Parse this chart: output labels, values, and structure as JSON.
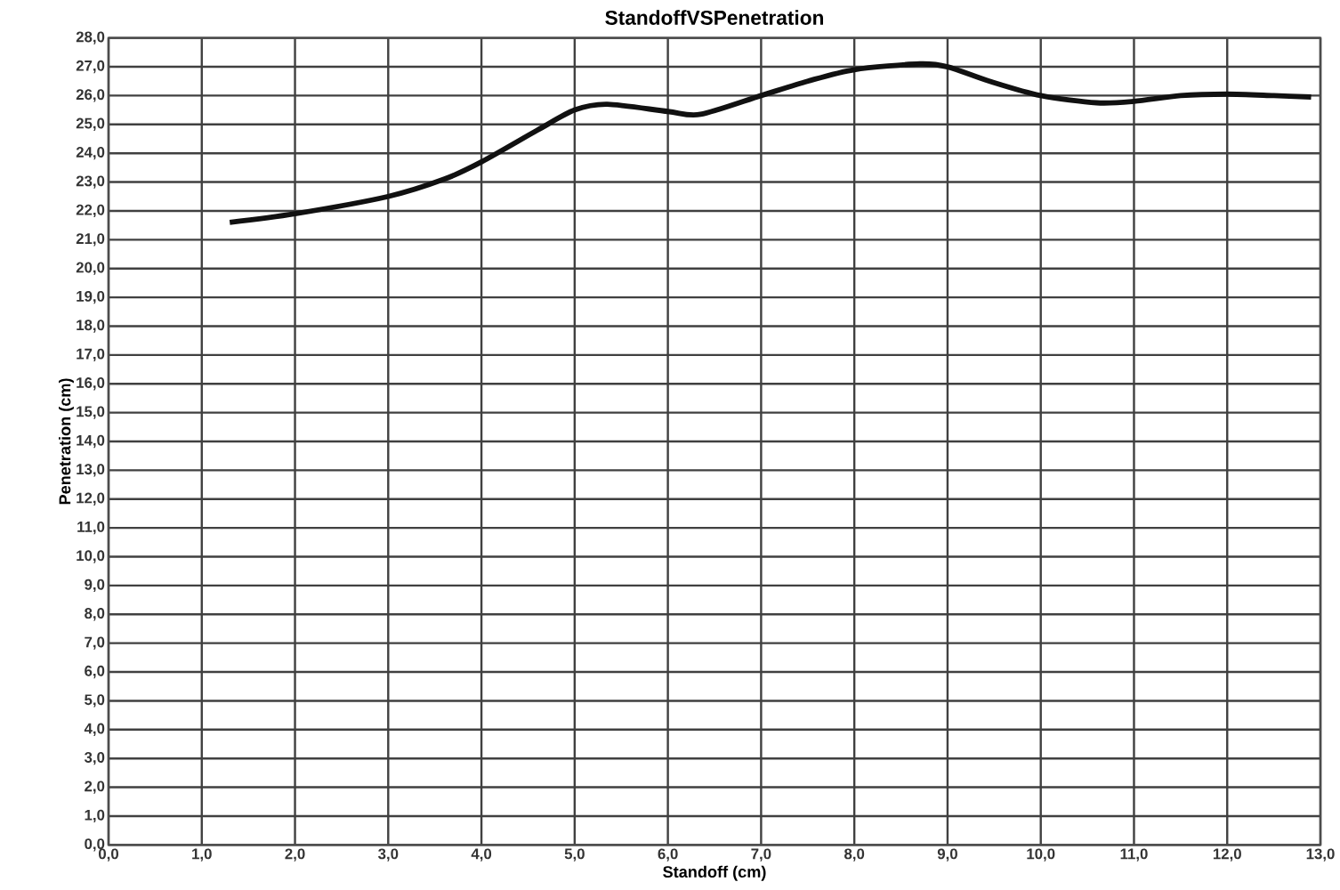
{
  "chart_data": {
    "type": "line",
    "title": "StandoffVSPenetration",
    "xlabel": "Standoff (cm)",
    "ylabel": "Penetration (cm)",
    "xlim": [
      0,
      13
    ],
    "ylim": [
      0,
      28
    ],
    "xticks": [
      {
        "value": 0,
        "label": "0,0"
      },
      {
        "value": 1,
        "label": "1,0"
      },
      {
        "value": 2,
        "label": "2,0"
      },
      {
        "value": 3,
        "label": "3,0"
      },
      {
        "value": 4,
        "label": "4,0"
      },
      {
        "value": 5,
        "label": "5,0"
      },
      {
        "value": 6,
        "label": "6,0"
      },
      {
        "value": 7,
        "label": "7,0"
      },
      {
        "value": 8,
        "label": "8,0"
      },
      {
        "value": 9,
        "label": "9,0"
      },
      {
        "value": 10,
        "label": "10,0"
      },
      {
        "value": 11,
        "label": "11,0"
      },
      {
        "value": 12,
        "label": "12,0"
      },
      {
        "value": 13,
        "label": "13,0"
      }
    ],
    "yticks": [
      {
        "value": 0,
        "label": "0,0"
      },
      {
        "value": 1,
        "label": "1,0"
      },
      {
        "value": 2,
        "label": "2,0"
      },
      {
        "value": 3,
        "label": "3,0"
      },
      {
        "value": 4,
        "label": "4,0"
      },
      {
        "value": 5,
        "label": "5,0"
      },
      {
        "value": 6,
        "label": "6,0"
      },
      {
        "value": 7,
        "label": "7,0"
      },
      {
        "value": 8,
        "label": "8,0"
      },
      {
        "value": 9,
        "label": "9,0"
      },
      {
        "value": 10,
        "label": "10,0"
      },
      {
        "value": 11,
        "label": "11,0"
      },
      {
        "value": 12,
        "label": "12,0"
      },
      {
        "value": 13,
        "label": "13,0"
      },
      {
        "value": 14,
        "label": "14,0"
      },
      {
        "value": 15,
        "label": "15,0"
      },
      {
        "value": 16,
        "label": "16,0"
      },
      {
        "value": 17,
        "label": "17,0"
      },
      {
        "value": 18,
        "label": "18,0"
      },
      {
        "value": 19,
        "label": "19,0"
      },
      {
        "value": 20,
        "label": "20,0"
      },
      {
        "value": 21,
        "label": "21,0"
      },
      {
        "value": 22,
        "label": "22,0"
      },
      {
        "value": 23,
        "label": "23,0"
      },
      {
        "value": 24,
        "label": "24,0"
      },
      {
        "value": 25,
        "label": "25,0"
      },
      {
        "value": 26,
        "label": "26,0"
      },
      {
        "value": 27,
        "label": "27,0"
      },
      {
        "value": 28,
        "label": "28,0"
      }
    ],
    "grid": true,
    "marker": "none",
    "line_style": "solid",
    "series": [
      {
        "color": "#111111",
        "x": [
          1.3,
          2.0,
          3.0,
          3.6,
          4.0,
          4.6,
          5.0,
          5.35,
          6.0,
          6.35,
          7.0,
          7.5,
          8.0,
          8.7,
          9.0,
          9.45,
          10.0,
          10.6,
          11.0,
          11.5,
          12.0,
          12.5,
          12.9
        ],
        "values": [
          21.6,
          21.9,
          22.5,
          23.1,
          23.7,
          24.8,
          25.5,
          25.7,
          25.45,
          25.35,
          26.0,
          26.5,
          26.9,
          27.1,
          27.0,
          26.5,
          26.0,
          25.75,
          25.8,
          26.0,
          26.05,
          26.0,
          25.95
        ]
      }
    ]
  }
}
